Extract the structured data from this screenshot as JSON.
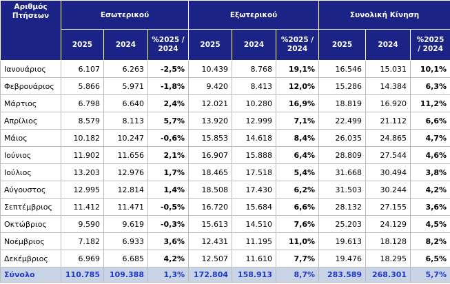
{
  "table": {
    "corner": "Αριθμός Πτήσεων",
    "groups": [
      "Εσωτερικού",
      "Εξωτερικού",
      "Συνολική Κίνηση"
    ],
    "subheaders": [
      "2025",
      "2024",
      "%2025 / 2024",
      "2025",
      "2024",
      "%2025 / 2024",
      "2025",
      "2024",
      "%2025 / 2024"
    ],
    "rows": [
      [
        "Ιανουάριος",
        "6.107",
        "6.263",
        "-2,5%",
        "10.439",
        "8.768",
        "19,1%",
        "16.546",
        "15.031",
        "10,1%"
      ],
      [
        "Φεβρουάριος",
        "5.866",
        "5.971",
        "-1,8%",
        "9.420",
        "8.413",
        "12,0%",
        "15.286",
        "14.384",
        "6,3%"
      ],
      [
        "Μάρτιος",
        "6.798",
        "6.640",
        "2,4%",
        "12.021",
        "10.280",
        "16,9%",
        "18.819",
        "16.920",
        "11,2%"
      ],
      [
        "Απρίλιος",
        "8.579",
        "8.113",
        "5,7%",
        "13.920",
        "12.999",
        "7,1%",
        "22.499",
        "21.112",
        "6,6%"
      ],
      [
        "Μάιος",
        "10.182",
        "10.247",
        "-0,6%",
        "15.853",
        "14.618",
        "8,4%",
        "26.035",
        "24.865",
        "4,7%"
      ],
      [
        "Ιούνιος",
        "11.902",
        "11.656",
        "2,1%",
        "16.907",
        "15.888",
        "6,4%",
        "28.809",
        "27.544",
        "4,6%"
      ],
      [
        "Ιούλιος",
        "13.203",
        "12.976",
        "1,7%",
        "18.465",
        "17.518",
        "5,4%",
        "31.668",
        "30.494",
        "3,8%"
      ],
      [
        "Αύγουστος",
        "12.995",
        "12.814",
        "1,4%",
        "18.508",
        "17.430",
        "6,2%",
        "31.503",
        "30.244",
        "4,2%"
      ],
      [
        "Σεπτέμβριος",
        "11.412",
        "11.471",
        "-0,5%",
        "16.720",
        "15.684",
        "6,6%",
        "28.132",
        "27.155",
        "3,6%"
      ],
      [
        "Οκτώβριος",
        "9.590",
        "9.619",
        "-0,3%",
        "15.613",
        "14.510",
        "7,6%",
        "25.203",
        "24.129",
        "4,5%"
      ],
      [
        "Νοέμβριος",
        "7.182",
        "6.933",
        "3,6%",
        "12.431",
        "11.195",
        "11,0%",
        "19.613",
        "18.128",
        "8,2%"
      ],
      [
        "Δεκέμβριος",
        "6.969",
        "6.685",
        "4,2%",
        "12.507",
        "11.610",
        "7,7%",
        "19.476",
        "18.295",
        "6,5%"
      ]
    ],
    "total": [
      "Σύνολο",
      "110.785",
      "109.388",
      "1,3%",
      "172.804",
      "158.913",
      "8,7%",
      "283.589",
      "268.301",
      "5,7%"
    ]
  }
}
